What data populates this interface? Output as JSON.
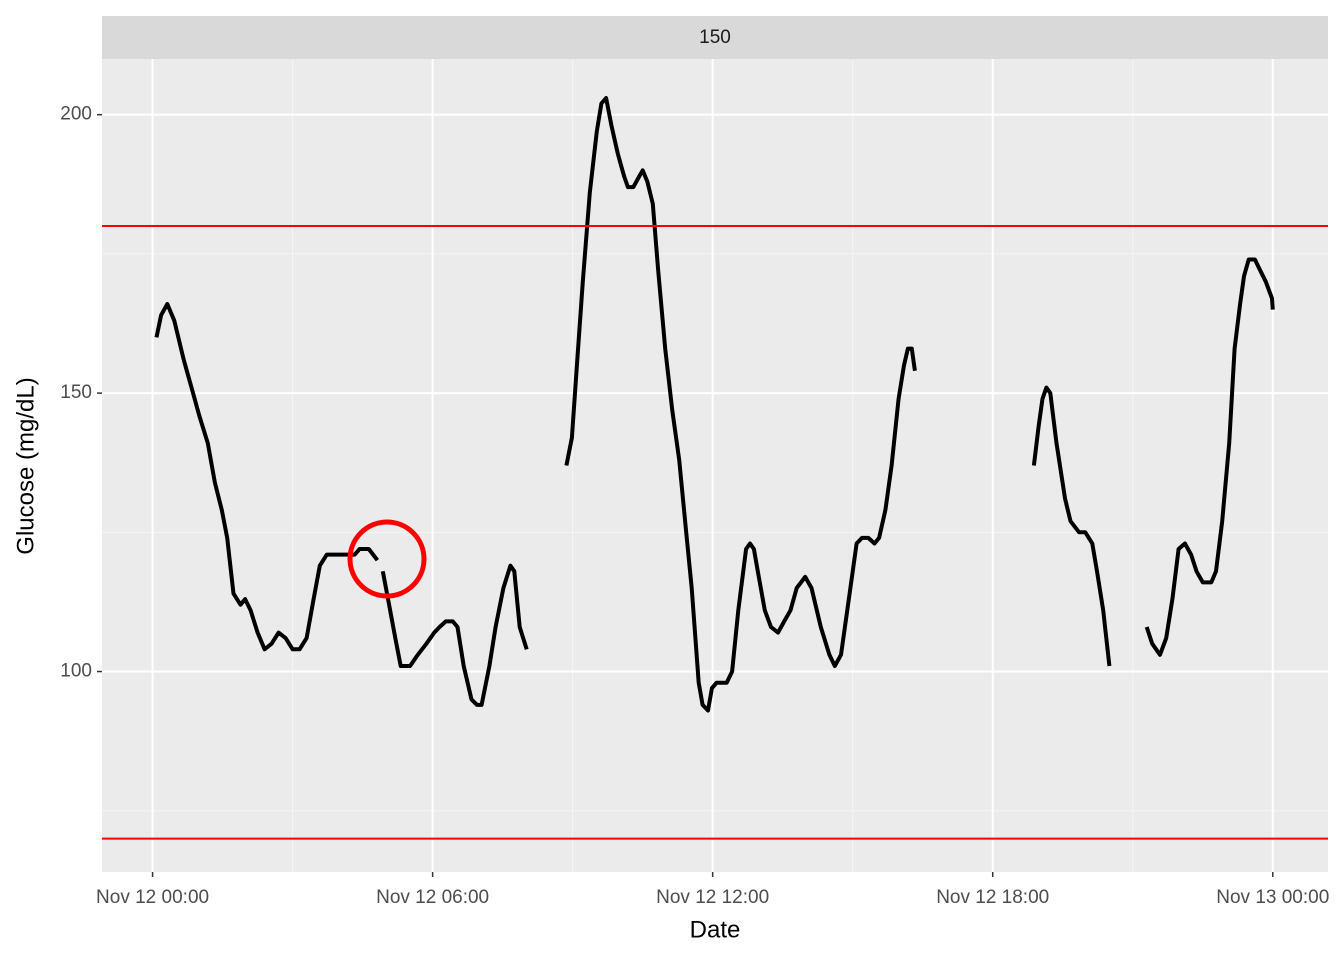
{
  "chart_data": {
    "type": "line",
    "facet_label": "150",
    "xlabel": "Date",
    "ylabel": "Glucose (mg/dL)",
    "xlim": [
      "Nov 11 22:55",
      "Nov 13 01:11"
    ],
    "xticks": [
      "Nov 12 00:00",
      "Nov 12 06:00",
      "Nov 12 12:00",
      "Nov 12 18:00",
      "Nov 13 00:00"
    ],
    "xminor": [
      "Nov 12 03:00",
      "Nov 12 09:00",
      "Nov 12 15:00",
      "Nov 12 21:00"
    ],
    "ylim": [
      64,
      210
    ],
    "yticks": [
      100,
      150,
      200
    ],
    "yminor": [
      75,
      125,
      175
    ],
    "grid": true,
    "hlines": [
      {
        "value": 180,
        "color": "#ff0000"
      },
      {
        "value": 70,
        "color": "#ff0000"
      }
    ],
    "x": [
      "Nov 12 00:05",
      "Nov 12 00:11",
      "Nov 12 00:19",
      "Nov 12 00:28",
      "Nov 12 00:40",
      "Nov 12 00:50",
      "Nov 12 01:00",
      "Nov 12 01:11",
      "Nov 12 01:20",
      "Nov 12 01:29",
      "Nov 12 01:36",
      "Nov 12 01:44",
      "Nov 12 01:53",
      "Nov 12 01:59",
      "Nov 12 02:06",
      "Nov 12 02:15",
      "Nov 12 02:24",
      "Nov 12 02:33",
      "Nov 12 02:42",
      "Nov 12 02:51",
      "Nov 12 03:00",
      "Nov 12 03:09",
      "Nov 12 03:18",
      "Nov 12 03:27",
      "Nov 12 03:35",
      "Nov 12 03:44",
      "Nov 12 03:53",
      "Nov 12 04:02",
      "Nov 12 04:11",
      "Nov 12 04:20",
      "Nov 12 04:26",
      "Nov 12 04:38",
      "Nov 12 04:49",
      null,
      "Nov 12 04:56",
      "Nov 12 05:04",
      "Nov 12 05:12",
      "Nov 12 05:19",
      "Nov 12 05:31",
      "Nov 12 05:41",
      "Nov 12 05:52",
      "Nov 12 06:02",
      "Nov 12 06:09",
      "Nov 12 06:17",
      "Nov 12 06:26",
      "Nov 12 06:32",
      "Nov 12 06:40",
      "Nov 12 06:50",
      "Nov 12 06:57",
      "Nov 12 07:03",
      "Nov 12 07:13",
      "Nov 12 07:21",
      "Nov 12 07:31",
      "Nov 12 07:40",
      "Nov 12 07:45",
      "Nov 12 07:52",
      "Nov 12 08:01",
      null,
      "Nov 12 08:52",
      "Nov 12 08:59",
      "Nov 12 09:06",
      "Nov 12 09:13",
      "Nov 12 09:22",
      "Nov 12 09:31",
      "Nov 12 09:37",
      "Nov 12 09:43",
      "Nov 12 09:50",
      "Nov 12 09:58",
      "Nov 12 10:06",
      "Nov 12 10:11",
      "Nov 12 10:18",
      "Nov 12 10:26",
      "Nov 12 10:30",
      "Nov 12 10:36",
      "Nov 12 10:43",
      "Nov 12 10:50",
      "Nov 12 10:59",
      "Nov 12 11:08",
      "Nov 12 11:17",
      "Nov 12 11:26",
      "Nov 12 11:33",
      "Nov 12 11:42",
      "Nov 12 11:47",
      "Nov 12 11:54",
      "Nov 12 11:59",
      "Nov 12 12:05",
      "Nov 12 12:18",
      "Nov 12 12:25",
      "Nov 12 12:33",
      "Nov 12 12:43",
      "Nov 12 12:48",
      "Nov 12 12:53",
      "Nov 12 12:58",
      "Nov 12 13:07",
      "Nov 12 13:15",
      "Nov 12 13:24",
      "Nov 12 13:32",
      "Nov 12 13:40",
      "Nov 12 13:48",
      "Nov 12 13:59",
      "Nov 12 14:07",
      "Nov 12 14:19",
      "Nov 12 14:30",
      "Nov 12 14:37",
      "Nov 12 14:45",
      "Nov 12 14:57",
      "Nov 12 15:05",
      "Nov 12 15:12",
      "Nov 12 15:20",
      "Nov 12 15:28",
      "Nov 12 15:34",
      "Nov 12 15:42",
      "Nov 12 15:50",
      "Nov 12 15:59",
      "Nov 12 16:06",
      "Nov 12 16:11",
      "Nov 12 16:16",
      "Nov 12 16:20",
      null,
      "Nov 12 18:53",
      "Nov 12 18:59",
      "Nov 12 19:04",
      "Nov 12 19:09",
      "Nov 12 19:14",
      "Nov 12 19:22",
      "Nov 12 19:33",
      "Nov 12 19:40",
      "Nov 12 19:51",
      "Nov 12 19:59",
      "Nov 12 20:08",
      "Nov 12 20:14",
      "Nov 12 20:22",
      "Nov 12 20:30",
      null,
      "Nov 12 21:18",
      "Nov 12 21:25",
      "Nov 12 21:35",
      "Nov 12 21:43",
      "Nov 12 21:51",
      "Nov 12 21:59",
      "Nov 12 22:07",
      "Nov 12 22:15",
      "Nov 12 22:22",
      "Nov 12 22:30",
      "Nov 12 22:41",
      "Nov 12 22:47",
      "Nov 12 22:55",
      "Nov 12 23:04",
      "Nov 12 23:11",
      "Nov 12 23:18",
      "Nov 12 23:23",
      "Nov 12 23:29",
      "Nov 12 23:37",
      "Nov 12 23:44",
      "Nov 12 23:51",
      "Nov 12 23:59",
      "Nov 13 00:00"
    ],
    "series": [
      {
        "color": "#000000",
        "values": [
          160,
          164,
          166,
          163,
          156,
          151,
          146,
          141,
          134,
          129,
          124,
          114,
          112,
          113,
          111,
          107,
          104,
          105,
          107,
          106,
          104,
          104,
          106,
          113,
          119,
          121,
          121,
          121,
          121,
          121,
          122,
          122,
          120,
          null,
          118,
          112,
          106,
          101,
          101,
          103,
          105,
          107,
          108,
          109,
          109,
          108,
          101,
          95,
          94,
          94,
          101,
          108,
          115,
          119,
          118,
          108,
          104,
          null,
          137,
          142,
          156,
          170,
          186,
          197,
          202,
          203,
          198,
          193,
          189,
          187,
          187,
          189,
          190,
          188,
          184,
          172,
          158,
          147,
          138,
          125,
          115,
          98,
          94,
          93,
          97,
          98,
          98,
          100,
          111,
          122,
          123,
          122,
          118,
          111,
          108,
          107,
          109,
          111,
          115,
          117,
          115,
          108,
          103,
          101,
          103,
          115,
          123,
          124,
          124,
          123,
          124,
          129,
          137,
          149,
          155,
          158,
          158,
          154,
          null,
          137,
          144,
          149,
          151,
          150,
          141,
          131,
          127,
          125,
          125,
          123,
          118,
          111,
          101,
          null,
          108,
          105,
          103,
          106,
          113,
          122,
          123,
          121,
          118,
          116,
          116,
          118,
          127,
          141,
          158,
          166,
          171,
          174,
          174,
          172,
          170,
          167,
          165
        ]
      }
    ]
  }
}
